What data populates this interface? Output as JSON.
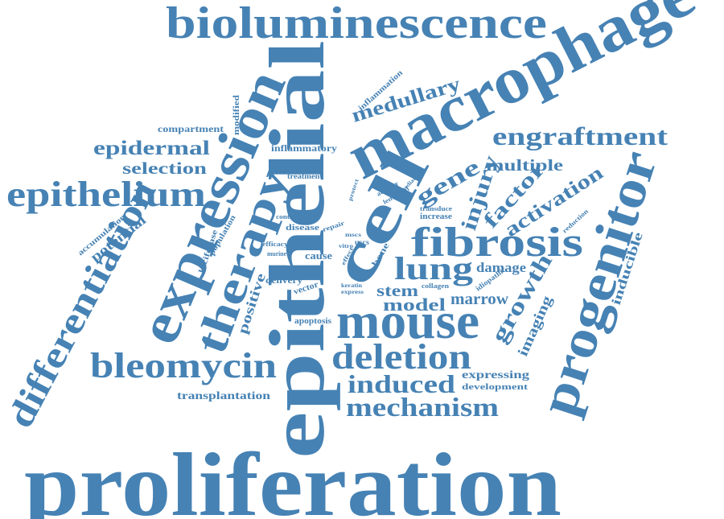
{
  "colors": {
    "word": "#4682b4",
    "background": "#ffffff"
  },
  "words": [
    {
      "text": "proliferation"
    },
    {
      "text": "epithelial"
    },
    {
      "text": "macrophage"
    },
    {
      "text": "bioluminescence"
    },
    {
      "text": "expression"
    },
    {
      "text": "cell"
    },
    {
      "text": "mouse"
    },
    {
      "text": "progenitor"
    },
    {
      "text": "therapy"
    },
    {
      "text": "differentiation"
    },
    {
      "text": "epithelium"
    },
    {
      "text": "fibrosis"
    },
    {
      "text": "bleomycin"
    },
    {
      "text": "deletion"
    },
    {
      "text": "lung"
    },
    {
      "text": "engraftment"
    },
    {
      "text": "mechanism"
    },
    {
      "text": "induced"
    },
    {
      "text": "medullary"
    },
    {
      "text": "epidermal"
    },
    {
      "text": "selection"
    },
    {
      "text": "gene"
    },
    {
      "text": "injury"
    },
    {
      "text": "factor"
    },
    {
      "text": "activation"
    },
    {
      "text": "growth"
    },
    {
      "text": "multiple"
    },
    {
      "text": "model"
    },
    {
      "text": "stem"
    },
    {
      "text": "marrow"
    },
    {
      "text": "damage"
    },
    {
      "text": "imaging"
    },
    {
      "text": "inducible"
    },
    {
      "text": "positive"
    },
    {
      "text": "potential"
    },
    {
      "text": "transplantation"
    },
    {
      "text": "expressing"
    },
    {
      "text": "development"
    },
    {
      "text": "compartment"
    },
    {
      "text": "inflammatory"
    },
    {
      "text": "inflammation"
    },
    {
      "text": "modified"
    },
    {
      "text": "treatment"
    },
    {
      "text": "accumulation"
    },
    {
      "text": "luciferase"
    },
    {
      "text": "population"
    },
    {
      "text": "control"
    },
    {
      "text": "disease"
    },
    {
      "text": "repair"
    },
    {
      "text": "efficacy"
    },
    {
      "text": "murine"
    },
    {
      "text": "cause"
    },
    {
      "text": "delivery"
    },
    {
      "text": "vector"
    },
    {
      "text": "apoptosis"
    },
    {
      "text": "atrophy"
    },
    {
      "text": "lentiviral"
    },
    {
      "text": "mediator"
    },
    {
      "text": "protect"
    },
    {
      "text": "transduce"
    },
    {
      "text": "increase"
    },
    {
      "text": "reduction"
    },
    {
      "text": "mscs"
    },
    {
      "text": "vitro"
    },
    {
      "text": "uscs"
    },
    {
      "text": "effect"
    },
    {
      "text": "bone"
    },
    {
      "text": "keratin"
    },
    {
      "text": "express"
    },
    {
      "text": "collagen"
    },
    {
      "text": "idiopathic"
    }
  ]
}
